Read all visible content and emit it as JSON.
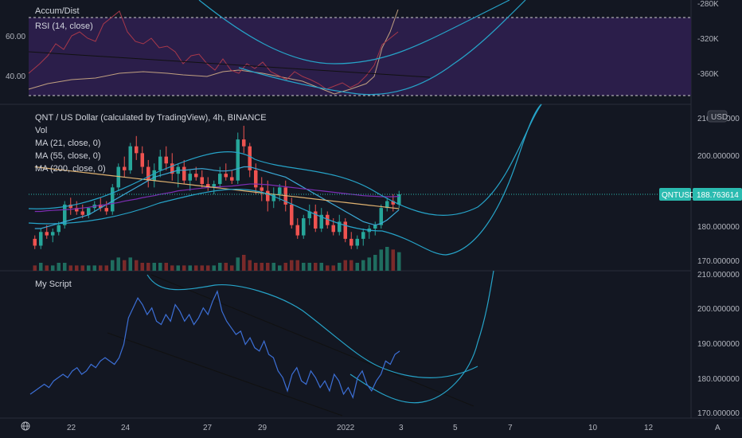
{
  "app": {
    "symbol_tag": "QNTUSD",
    "last_price": "188.763614",
    "currency_badge": "USD"
  },
  "icons": {
    "timezone": "globe-icon",
    "auto_scale": "auto-scale-icon"
  },
  "labels": {
    "scale_auto": "A"
  },
  "colors": {
    "background": "#131722",
    "up": "#26a69a",
    "down": "#ef5350",
    "rsi_band": "#2b1e4a",
    "ad_line": "#c0a080",
    "rsi_line": "#a8384a",
    "bands": "#26a3c8",
    "ma21": "#3ba9d6",
    "ma55": "#7c2eb3",
    "ma200": "#e0b270",
    "script_line": "#3c6fd6",
    "price_line": "#2bbbb0"
  },
  "panes": {
    "top": {
      "titles": [
        "Accum/Dist",
        "RSI (14, close)"
      ],
      "left_ticks": [
        "60.00",
        "40.00"
      ],
      "right_ticks": [
        "-280K",
        "-320K",
        "-360K"
      ]
    },
    "main": {
      "title": "QNT / US Dollar (calculated by TradingView), 4h, BINANCE",
      "legend": [
        "Vol",
        "MA (21, close, 0)",
        "MA (55, close, 0)",
        "MA (200, close, 0)"
      ],
      "right_ticks": [
        "210.000000",
        "200.000000",
        "180.000000",
        "170.000000"
      ]
    },
    "bottom": {
      "title": "My Script",
      "right_ticks": [
        "210.000000",
        "200.000000",
        "190.000000",
        "180.000000",
        "170.000000"
      ]
    }
  },
  "x_axis": {
    "ticks": [
      "22",
      "24",
      "27",
      "29",
      "2022",
      "3",
      "5",
      "7",
      "10",
      "12"
    ]
  },
  "chart_data": [
    {
      "type": "candlestick",
      "title": "QNT / US Dollar (calculated by TradingView), 4h, BINANCE",
      "ylim": [
        168,
        211
      ],
      "candles": [
        [
          175,
          176,
          172,
          173
        ],
        [
          173,
          178,
          172,
          177
        ],
        [
          177,
          179,
          175,
          176
        ],
        [
          176,
          178,
          174,
          177
        ],
        [
          177,
          180,
          176,
          179
        ],
        [
          179,
          186,
          178,
          185
        ],
        [
          185,
          187,
          182,
          184
        ],
        [
          184,
          186,
          182,
          183
        ],
        [
          183,
          185,
          181,
          182
        ],
        [
          182,
          184,
          181,
          184
        ],
        [
          184,
          186,
          183,
          185
        ],
        [
          185,
          187,
          183,
          184
        ],
        [
          184,
          186,
          182,
          183
        ],
        [
          183,
          191,
          182,
          190
        ],
        [
          190,
          197,
          189,
          196
        ],
        [
          196,
          199,
          193,
          195
        ],
        [
          195,
          203,
          194,
          202
        ],
        [
          202,
          205,
          198,
          200
        ],
        [
          200,
          202,
          194,
          196
        ],
        [
          196,
          198,
          190,
          192
        ],
        [
          192,
          197,
          190,
          195
        ],
        [
          195,
          201,
          193,
          199
        ],
        [
          199,
          202,
          195,
          197
        ],
        [
          197,
          200,
          192,
          194
        ],
        [
          194,
          197,
          190,
          196
        ],
        [
          196,
          198,
          191,
          192
        ],
        [
          192,
          195,
          189,
          194
        ],
        [
          194,
          196,
          192,
          193
        ],
        [
          193,
          195,
          190,
          191
        ],
        [
          191,
          193,
          189,
          190
        ],
        [
          190,
          192,
          188,
          191
        ],
        [
          191,
          196,
          190,
          194
        ],
        [
          194,
          197,
          192,
          193
        ],
        [
          193,
          195,
          191,
          192
        ],
        [
          192,
          206,
          191,
          204
        ],
        [
          204,
          208,
          200,
          202
        ],
        [
          202,
          203,
          193,
          195
        ],
        [
          195,
          197,
          188,
          190
        ],
        [
          190,
          193,
          186,
          189
        ],
        [
          189,
          192,
          183,
          186
        ],
        [
          186,
          190,
          184,
          188
        ],
        [
          188,
          191,
          186,
          190
        ],
        [
          190,
          192,
          183,
          185
        ],
        [
          185,
          187,
          178,
          179
        ],
        [
          179,
          181,
          175,
          176
        ],
        [
          176,
          182,
          175,
          181
        ],
        [
          181,
          185,
          179,
          183
        ],
        [
          183,
          185,
          177,
          178
        ],
        [
          178,
          184,
          177,
          182
        ],
        [
          182,
          183,
          178,
          179
        ],
        [
          179,
          181,
          176,
          177
        ],
        [
          177,
          182,
          176,
          180
        ],
        [
          180,
          181,
          174,
          175
        ],
        [
          175,
          177,
          172,
          173
        ],
        [
          173,
          176,
          172,
          175
        ],
        [
          175,
          178,
          173,
          177
        ],
        [
          177,
          179,
          175,
          178
        ],
        [
          178,
          180,
          176,
          179
        ],
        [
          179,
          185,
          178,
          184
        ],
        [
          184,
          187,
          183,
          186
        ],
        [
          186,
          188,
          183,
          185
        ],
        [
          185,
          189,
          184,
          188
        ]
      ],
      "volume": [
        2,
        3,
        2,
        2,
        3,
        3,
        2,
        2,
        2,
        2,
        2,
        2,
        2,
        4,
        5,
        4,
        5,
        4,
        3,
        3,
        3,
        3,
        3,
        2,
        2,
        2,
        2,
        2,
        2,
        2,
        2,
        3,
        3,
        2,
        5,
        6,
        4,
        3,
        3,
        3,
        3,
        2,
        3,
        4,
        4,
        3,
        3,
        3,
        3,
        2,
        2,
        3,
        4,
        4,
        3,
        4,
        5,
        6,
        8,
        9,
        8,
        7
      ],
      "ma21": [
        178,
        178,
        178.5,
        179,
        179.5,
        180,
        180.5,
        181,
        181.5,
        182,
        183,
        184,
        185,
        186,
        187,
        188,
        189,
        190,
        191,
        192,
        193,
        193.5,
        194,
        194.5,
        195,
        195,
        195.2,
        195.4,
        195.5,
        195.3,
        195,
        194.8,
        194.8,
        195,
        195.5,
        196,
        196,
        195.5,
        195,
        194.5,
        194,
        193.5,
        193,
        192,
        191,
        190,
        189,
        188,
        187,
        186,
        185,
        184,
        183,
        182,
        181,
        180,
        179.5,
        179,
        179.5,
        180.5,
        182,
        183.5
      ],
      "ma55": [
        183,
        183,
        183.2,
        183.3,
        183.4,
        183.5,
        183.6,
        183.8,
        184,
        184.2,
        184.5,
        184.8,
        185,
        185.3,
        185.6,
        186,
        186.3,
        186.6,
        187,
        187.3,
        187.6,
        188,
        188.3,
        188.6,
        189,
        189.2,
        189.4,
        189.6,
        189.8,
        190,
        190.1,
        190.2,
        190.3,
        190.4,
        190.6,
        190.8,
        191,
        191,
        190.9,
        190.8,
        190.6,
        190.4,
        190.2,
        190,
        189.8,
        189.6,
        189.4,
        189.2,
        189,
        188.8,
        188.6,
        188.4,
        188.2,
        188,
        187.8,
        187.6,
        187.5,
        187.4,
        187.3,
        187.3,
        187.3,
        187.4
      ],
      "ma200": [
        196,
        195.8,
        195.6,
        195.4,
        195.2,
        195,
        194.8,
        194.6,
        194.4,
        194.2,
        194,
        193.8,
        193.6,
        193.4,
        193.2,
        193,
        192.8,
        192.6,
        192.4,
        192.2,
        192,
        191.8,
        191.6,
        191.4,
        191.2,
        191,
        190.8,
        190.6,
        190.4,
        190.2,
        190,
        189.8,
        189.6,
        189.4,
        189.2,
        189,
        188.8,
        188.6,
        188.4,
        188.2,
        188,
        187.8,
        187.6,
        187.4,
        187.2,
        187,
        186.8,
        186.6,
        186.4,
        186.2,
        186,
        185.8,
        185.6,
        185.4,
        185.2,
        185,
        184.8,
        184.6,
        184.4,
        184.2,
        184,
        183.8
      ]
    },
    {
      "type": "line",
      "title": "My Script",
      "ylim": [
        169,
        211
      ],
      "series": [
        {
          "values": [
            175,
            176,
            177,
            178,
            177,
            179,
            180,
            181,
            180,
            182,
            183,
            181,
            182,
            184,
            183,
            185,
            186,
            185,
            184,
            186,
            190,
            198,
            201,
            204,
            202,
            199,
            201,
            197,
            196,
            199,
            197,
            202,
            200,
            197,
            199,
            196,
            198,
            201,
            199,
            203,
            206,
            200,
            197,
            195,
            193,
            194,
            190,
            192,
            189,
            188,
            191,
            187,
            186,
            182,
            180,
            176,
            181,
            183,
            179,
            178,
            182,
            180,
            177,
            179,
            176,
            181,
            179,
            175,
            177,
            174,
            180,
            182,
            178,
            176,
            179,
            181,
            185,
            184,
            187,
            188
          ]
        }
      ]
    }
  ]
}
